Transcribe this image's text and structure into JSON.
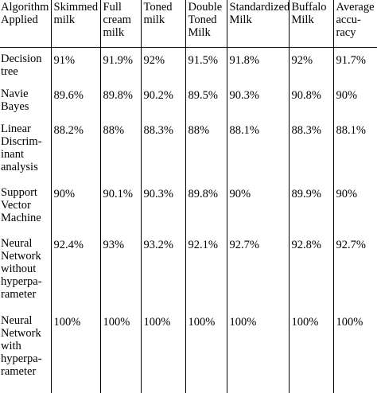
{
  "table": {
    "headers": [
      [
        "Algorithm",
        "Applied"
      ],
      [
        "Skimmed",
        "milk"
      ],
      [
        "Full",
        "cream",
        "milk"
      ],
      [
        "Toned",
        "milk"
      ],
      [
        "Double",
        "Toned",
        "Milk"
      ],
      [
        "Standardized",
        "Milk"
      ],
      [
        "Buffalo",
        "Milk"
      ],
      [
        "Average",
        "accu-",
        "racy"
      ]
    ],
    "rows": [
      {
        "algorithm": [
          "Decision",
          "tree"
        ],
        "values": [
          "91%",
          "91.9%",
          "92%",
          "91.5%",
          "91.8%",
          "92%",
          "91.7%"
        ]
      },
      {
        "algorithm": [
          "Navie",
          "Bayes"
        ],
        "values": [
          "89.6%",
          "89.8%",
          "90.2%",
          "89.5%",
          "90.3%",
          "90.8%",
          "90%"
        ]
      },
      {
        "algorithm": [
          "Linear",
          "Discrim-",
          "inant",
          "analysis"
        ],
        "values": [
          "88.2%",
          "88%",
          "88.3%",
          "88%",
          "88.1%",
          "88.3%",
          "88.1%"
        ]
      },
      {
        "algorithm": [
          "Support",
          "Vector",
          "Machine"
        ],
        "values": [
          "90%",
          "90.1%",
          "90.3%",
          "89.8%",
          "90%",
          "89.9%",
          "90%"
        ]
      },
      {
        "algorithm": [
          "Neural",
          "Network",
          "without",
          "hyperpa-",
          "rameter"
        ],
        "values": [
          "92.4%",
          "93%",
          "93.2%",
          "92.1%",
          "92.7%",
          "92.8%",
          "92.7%"
        ]
      },
      {
        "algorithm": [
          "Neural",
          "Network",
          "with",
          "hyperpa-",
          "rameter"
        ],
        "values": [
          "100%",
          "100%",
          "100%",
          "100%",
          "100%",
          "100%",
          "100%"
        ]
      }
    ]
  }
}
